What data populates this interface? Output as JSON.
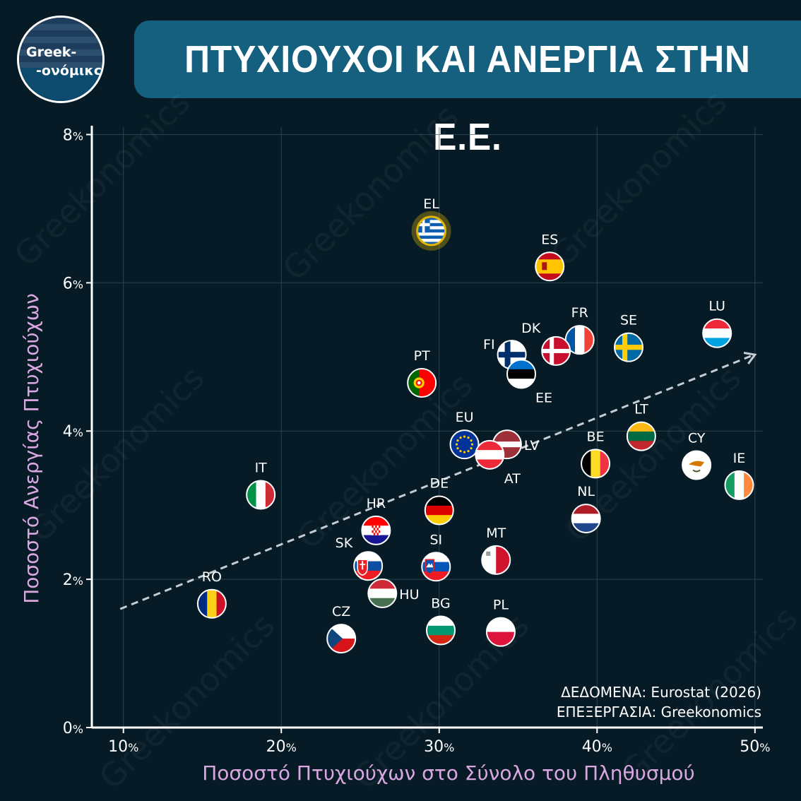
{
  "header": {
    "logo_line1": "Greek-",
    "logo_line2": "-ονόμικς",
    "title": "ΠΤΥΧΙΟΥΧΟΙ ΚΑΙ ΑΝΕΡΓΙΑ ΣΤΗΝ Ε.Ε."
  },
  "source": {
    "line1": "ΔΕΔΟΜΕΝΑ: Eurostat (2026)",
    "line2": "ΕΠΕΞΕΡΓΑΣΙΑ: Greekonomics"
  },
  "watermark": "Greekonomics",
  "colors": {
    "background": "#061b26",
    "title_bar": "#15607f",
    "axis_label": "#d9a6e0",
    "trend": "#c5cdd2",
    "highlight": "#e3b505"
  },
  "chart_data": {
    "type": "scatter",
    "title": "ΠΤΥΧΙΟΥΧΟΙ ΚΑΙ ΑΝΕΡΓΙΑ ΣΤΗΝ Ε.Ε.",
    "xlabel": "Ποσοστό Πτυχιούχων στο Σύνολο του Πληθυσμού",
    "ylabel": "Ποσοστό Ανεργίας Πτυχιούχων",
    "xlim": [
      8,
      50.5
    ],
    "ylim": [
      0,
      8.1
    ],
    "xticks": [
      10,
      20,
      30,
      40,
      50
    ],
    "yticks": [
      0,
      2,
      4,
      6,
      8
    ],
    "x_unit": "%",
    "y_unit": "%",
    "grid": true,
    "trendline": {
      "from": [
        9.8,
        1.6
      ],
      "to": [
        50.0,
        5.03
      ]
    },
    "points": [
      {
        "code": "EL",
        "x": 29.5,
        "y": 6.7,
        "flag": "greece",
        "label_pos": "top",
        "highlight": true
      },
      {
        "code": "ES",
        "x": 37.0,
        "y": 6.22,
        "flag": "spain",
        "label_pos": "top"
      },
      {
        "code": "LU",
        "x": 47.6,
        "y": 5.32,
        "flag": "luxembourg",
        "label_pos": "top"
      },
      {
        "code": "FR",
        "x": 38.9,
        "y": 5.23,
        "flag": "france",
        "label_pos": "top"
      },
      {
        "code": "SE",
        "x": 42.0,
        "y": 5.13,
        "flag": "sweden",
        "label_pos": "top"
      },
      {
        "code": "DK",
        "x": 37.4,
        "y": 5.08,
        "flag": "denmark",
        "label_pos": "topleft"
      },
      {
        "code": "FI",
        "x": 34.6,
        "y": 5.03,
        "flag": "finland",
        "label_pos": "left"
      },
      {
        "code": "EE",
        "x": 35.2,
        "y": 4.77,
        "flag": "estonia",
        "label_pos": "bottomright"
      },
      {
        "code": "PT",
        "x": 28.9,
        "y": 4.65,
        "flag": "portugal",
        "label_pos": "top"
      },
      {
        "code": "LT",
        "x": 42.8,
        "y": 3.93,
        "flag": "lithuania",
        "label_pos": "top"
      },
      {
        "code": "LV",
        "x": 34.3,
        "y": 3.82,
        "flag": "latvia",
        "label_pos": "right"
      },
      {
        "code": "EU",
        "x": 31.6,
        "y": 3.82,
        "flag": "eu",
        "label_pos": "top"
      },
      {
        "code": "AT",
        "x": 33.2,
        "y": 3.68,
        "flag": "austria",
        "label_pos": "bottomright"
      },
      {
        "code": "BE",
        "x": 39.9,
        "y": 3.56,
        "flag": "belgium",
        "label_pos": "top"
      },
      {
        "code": "CY",
        "x": 46.3,
        "y": 3.54,
        "flag": "cyprus",
        "label_pos": "top"
      },
      {
        "code": "IE",
        "x": 49.0,
        "y": 3.27,
        "flag": "ireland",
        "label_pos": "top"
      },
      {
        "code": "IT",
        "x": 18.7,
        "y": 3.14,
        "flag": "italy",
        "label_pos": "top"
      },
      {
        "code": "DE",
        "x": 30.0,
        "y": 2.93,
        "flag": "germany",
        "label_pos": "top"
      },
      {
        "code": "NL",
        "x": 39.3,
        "y": 2.82,
        "flag": "netherlands",
        "label_pos": "top"
      },
      {
        "code": "HR",
        "x": 26.0,
        "y": 2.66,
        "flag": "croatia",
        "label_pos": "top"
      },
      {
        "code": "MT",
        "x": 33.6,
        "y": 2.26,
        "flag": "malta",
        "label_pos": "top"
      },
      {
        "code": "SK",
        "x": 25.5,
        "y": 2.18,
        "flag": "slovakia",
        "label_pos": "topleft"
      },
      {
        "code": "SI",
        "x": 29.8,
        "y": 2.17,
        "flag": "slovenia",
        "label_pos": "top"
      },
      {
        "code": "HU",
        "x": 26.4,
        "y": 1.81,
        "flag": "hungary",
        "label_pos": "right"
      },
      {
        "code": "RO",
        "x": 15.6,
        "y": 1.67,
        "flag": "romania",
        "label_pos": "top"
      },
      {
        "code": "BG",
        "x": 30.1,
        "y": 1.31,
        "flag": "bulgaria",
        "label_pos": "top"
      },
      {
        "code": "PL",
        "x": 33.9,
        "y": 1.29,
        "flag": "poland",
        "label_pos": "top"
      },
      {
        "code": "CZ",
        "x": 23.8,
        "y": 1.2,
        "flag": "czechia",
        "label_pos": "top"
      }
    ]
  }
}
